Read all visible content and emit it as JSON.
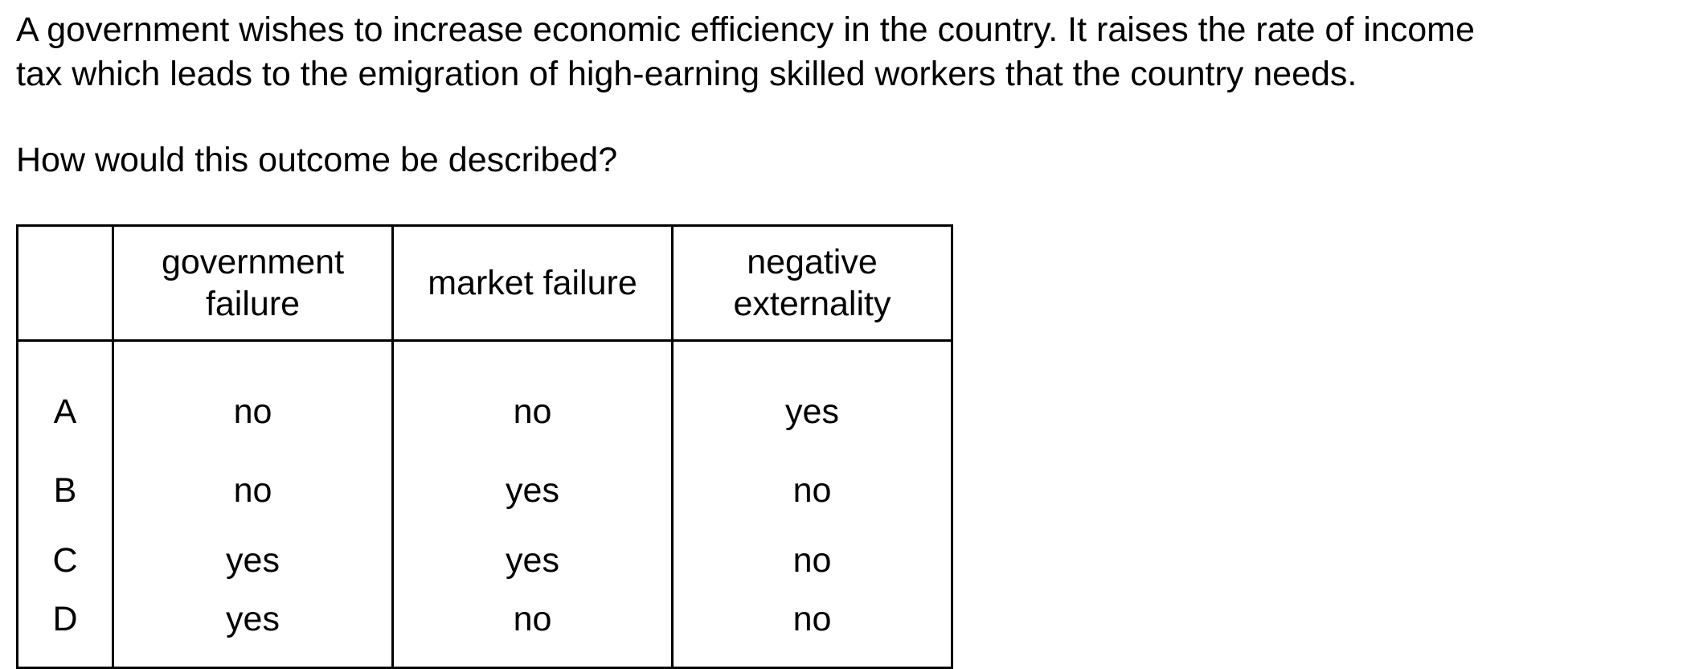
{
  "question": {
    "line1": "A government wishes to increase economic efficiency in the country. It raises the rate of income",
    "line2": "tax which leads to the emigration of high-earning skilled workers that the country needs.",
    "prompt": "How would this outcome be described?"
  },
  "table": {
    "headers": [
      "",
      "government failure",
      "market failure",
      "negative externality"
    ],
    "header_lines": {
      "col1": [
        "government",
        "failure"
      ],
      "col2": [
        "market failure"
      ],
      "col3": [
        "negative",
        "externality"
      ]
    },
    "rows": [
      {
        "letter": "A",
        "cells": [
          "no",
          "no",
          "yes"
        ]
      },
      {
        "letter": "B",
        "cells": [
          "no",
          "yes",
          "no"
        ]
      },
      {
        "letter": "C",
        "cells": [
          "yes",
          "yes",
          "no"
        ]
      },
      {
        "letter": "D",
        "cells": [
          "yes",
          "no",
          "no"
        ]
      }
    ]
  }
}
